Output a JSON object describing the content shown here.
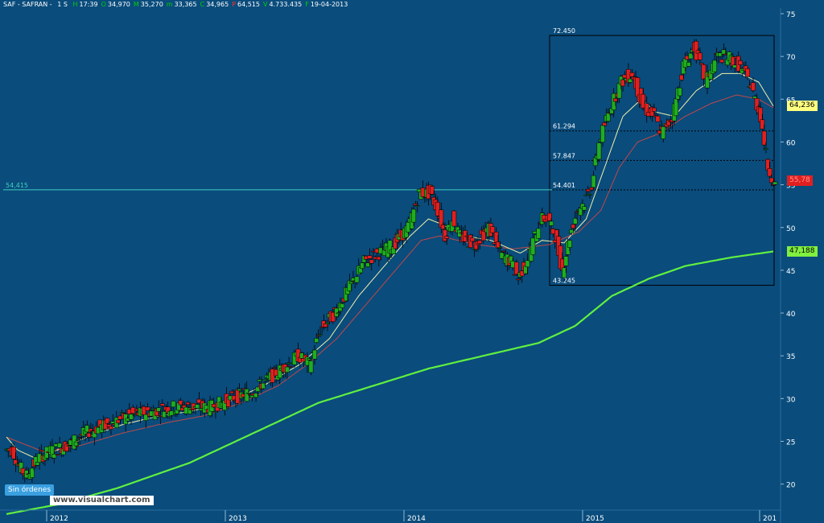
{
  "header": {
    "symbol": "SAF - SAFRAN -",
    "period": "1 S",
    "items": [
      {
        "label": "H",
        "value": "17:39",
        "red": false
      },
      {
        "label": "O",
        "value": "34,970",
        "red": false
      },
      {
        "label": "M",
        "value": "35,270",
        "red": false
      },
      {
        "label": "m",
        "value": "33,365",
        "red": false
      },
      {
        "label": "C",
        "value": "34,965",
        "red": false
      },
      {
        "label": "P",
        "value": "64,515",
        "red": true
      },
      {
        "label": "V",
        "value": "4.733.435",
        "red": false
      },
      {
        "label": "F",
        "value": "19-04-2013",
        "red": false
      }
    ]
  },
  "badges": {
    "ma_short": "64,236",
    "last_price": "55,78",
    "ma_long": "47,188"
  },
  "status_button": "Sin órdenes",
  "watermark": "www.visualchart.com",
  "colors": {
    "background": "#0a4c7c",
    "candle_up": "#1fae1f",
    "candle_down": "#e02020",
    "ma_short": "#f0f0a8",
    "ma_mid": "#c04848",
    "ma_long": "#60f040",
    "fib_box": "#000000",
    "hline": "#40d0c0"
  },
  "chart_data": {
    "type": "candlestick",
    "ylim": [
      17,
      75
    ],
    "y_ticks": [
      75,
      70,
      65,
      60,
      55,
      50,
      45,
      40,
      35,
      30,
      25,
      20
    ],
    "x_ticks": [
      "2012",
      "2013",
      "2014",
      "2015",
      "201"
    ],
    "horizontal_line": {
      "label": "54,415",
      "value": 54.415
    },
    "fibonacci": {
      "levels": [
        "72.450",
        "61.294",
        "57.847",
        "54.401",
        "43.245"
      ],
      "values": [
        72.45,
        61.294,
        57.847,
        54.401,
        43.245
      ]
    },
    "price_anchors": [
      [
        0,
        24
      ],
      [
        4,
        24
      ],
      [
        8,
        22
      ],
      [
        12,
        21
      ],
      [
        18,
        23
      ],
      [
        26,
        24
      ],
      [
        34,
        24.5
      ],
      [
        44,
        26
      ],
      [
        56,
        27
      ],
      [
        68,
        28
      ],
      [
        80,
        28.5
      ],
      [
        92,
        29
      ],
      [
        100,
        29
      ],
      [
        112,
        29
      ],
      [
        124,
        30
      ],
      [
        136,
        31
      ],
      [
        148,
        33
      ],
      [
        160,
        35
      ],
      [
        166,
        34
      ],
      [
        172,
        38
      ],
      [
        180,
        40
      ],
      [
        188,
        43
      ],
      [
        196,
        46
      ],
      [
        204,
        47
      ],
      [
        212,
        48
      ],
      [
        220,
        50
      ],
      [
        226,
        54
      ],
      [
        232,
        54
      ],
      [
        236,
        52
      ],
      [
        240,
        49
      ],
      [
        244,
        51
      ],
      [
        248,
        49
      ],
      [
        256,
        48
      ],
      [
        264,
        50
      ],
      [
        270,
        47
      ],
      [
        276,
        46
      ],
      [
        280,
        44
      ],
      [
        286,
        47
      ],
      [
        292,
        51
      ],
      [
        296,
        51
      ],
      [
        300,
        49
      ],
      [
        304,
        45
      ],
      [
        308,
        49
      ],
      [
        312,
        52
      ],
      [
        316,
        53
      ],
      [
        320,
        55
      ],
      [
        324,
        60
      ],
      [
        330,
        64
      ],
      [
        336,
        67
      ],
      [
        342,
        68
      ],
      [
        348,
        64
      ],
      [
        354,
        63
      ],
      [
        358,
        61
      ],
      [
        364,
        63
      ],
      [
        370,
        69
      ],
      [
        376,
        71
      ],
      [
        382,
        67
      ],
      [
        388,
        70
      ],
      [
        394,
        70
      ],
      [
        400,
        69
      ],
      [
        406,
        67
      ],
      [
        412,
        63
      ],
      [
        416,
        57
      ],
      [
        420,
        55
      ]
    ],
    "ma_short_anchors": [
      [
        0,
        25.5
      ],
      [
        6,
        24
      ],
      [
        16,
        23
      ],
      [
        28,
        24
      ],
      [
        44,
        25.5
      ],
      [
        64,
        27
      ],
      [
        84,
        28
      ],
      [
        100,
        28.5
      ],
      [
        120,
        29.5
      ],
      [
        140,
        31.5
      ],
      [
        160,
        34
      ],
      [
        176,
        37
      ],
      [
        192,
        42
      ],
      [
        208,
        46
      ],
      [
        220,
        49
      ],
      [
        230,
        51
      ],
      [
        236,
        50.5
      ],
      [
        250,
        49
      ],
      [
        264,
        48.5
      ],
      [
        280,
        47
      ],
      [
        292,
        48.5
      ],
      [
        304,
        48.2
      ],
      [
        316,
        51
      ],
      [
        326,
        57
      ],
      [
        336,
        63
      ],
      [
        346,
        65
      ],
      [
        354,
        63.5
      ],
      [
        364,
        63
      ],
      [
        376,
        66
      ],
      [
        390,
        68
      ],
      [
        400,
        68
      ],
      [
        410,
        67
      ],
      [
        418,
        64.2
      ]
    ],
    "ma_mid_anchors": [
      [
        0,
        25.5
      ],
      [
        20,
        23.8
      ],
      [
        40,
        24.5
      ],
      [
        64,
        26
      ],
      [
        88,
        27.2
      ],
      [
        108,
        28
      ],
      [
        128,
        29.5
      ],
      [
        148,
        31.5
      ],
      [
        164,
        34
      ],
      [
        180,
        37
      ],
      [
        196,
        41
      ],
      [
        212,
        45
      ],
      [
        226,
        48.5
      ],
      [
        236,
        49
      ],
      [
        256,
        48
      ],
      [
        276,
        47.5
      ],
      [
        296,
        48
      ],
      [
        312,
        49.5
      ],
      [
        324,
        52
      ],
      [
        334,
        57
      ],
      [
        344,
        60
      ],
      [
        356,
        61
      ],
      [
        370,
        63
      ],
      [
        384,
        64.5
      ],
      [
        398,
        65.5
      ],
      [
        410,
        65
      ],
      [
        418,
        64
      ]
    ],
    "ma_long_anchors": [
      [
        0,
        16.5
      ],
      [
        30,
        17.7
      ],
      [
        60,
        19.5
      ],
      [
        100,
        22.5
      ],
      [
        140,
        26.5
      ],
      [
        170,
        29.5
      ],
      [
        200,
        31.5
      ],
      [
        230,
        33.5
      ],
      [
        260,
        35
      ],
      [
        290,
        36.5
      ],
      [
        310,
        38.5
      ],
      [
        330,
        42
      ],
      [
        350,
        44
      ],
      [
        370,
        45.5
      ],
      [
        395,
        46.5
      ],
      [
        418,
        47.2
      ]
    ]
  }
}
